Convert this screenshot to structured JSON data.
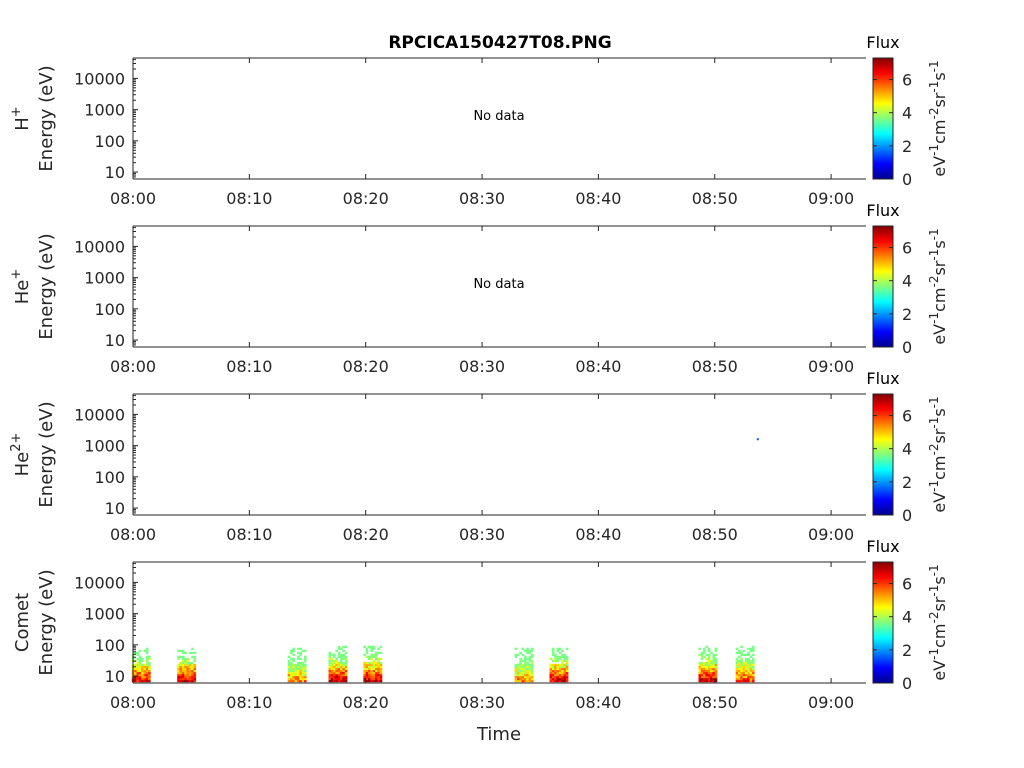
{
  "chart_data": {
    "type": "heatmap",
    "title": "RPCICA150427T08.PNG",
    "xlabel": "Time",
    "x_ticks": [
      "08:00",
      "08:10",
      "08:20",
      "08:30",
      "08:40",
      "08:50",
      "09:00"
    ],
    "x_range_minutes": [
      0,
      63
    ],
    "y_scale": "log",
    "y_ticks": [
      "10",
      "100",
      "1000",
      "10000"
    ],
    "y_range_eV": [
      6,
      45000
    ],
    "colorbar": {
      "title": "Flux",
      "ticks": [
        "0",
        "2",
        "4",
        "6"
      ],
      "range": [
        0,
        7.3
      ],
      "unit_parts": [
        "eV",
        "-1",
        "cm",
        "-2",
        "sr",
        "-1",
        "s",
        "-1"
      ]
    },
    "panels": [
      {
        "species_base": "H",
        "species_sup": "+",
        "ylabel": "Energy (eV)",
        "note": "No data",
        "cells": []
      },
      {
        "species_base": "He",
        "species_sup": "+",
        "ylabel": "Energy (eV)",
        "note": "No data",
        "cells": []
      },
      {
        "species_base": "He",
        "species_sup": "2+",
        "ylabel": "Energy (eV)",
        "note": "",
        "cells": [
          {
            "t": 53.7,
            "e": 1600,
            "v": 1.5
          }
        ]
      },
      {
        "species_base": "Comet",
        "species_sup": "",
        "ylabel": "Energy (eV)",
        "note": "",
        "bursts": [
          {
            "t": 0.6,
            "peak": 6.5,
            "top": 70
          },
          {
            "t": 4.5,
            "peak": 6.8,
            "top": 80
          },
          {
            "t": 14.0,
            "peak": 5.5,
            "top": 70
          },
          {
            "t": 17.5,
            "peak": 6.8,
            "top": 85
          },
          {
            "t": 20.5,
            "peak": 6.8,
            "top": 85
          },
          {
            "t": 33.5,
            "peak": 5.5,
            "top": 80
          },
          {
            "t": 36.5,
            "peak": 6.8,
            "top": 80
          },
          {
            "t": 49.3,
            "peak": 6.8,
            "top": 90
          },
          {
            "t": 52.5,
            "peak": 6.0,
            "top": 90
          }
        ]
      }
    ]
  }
}
